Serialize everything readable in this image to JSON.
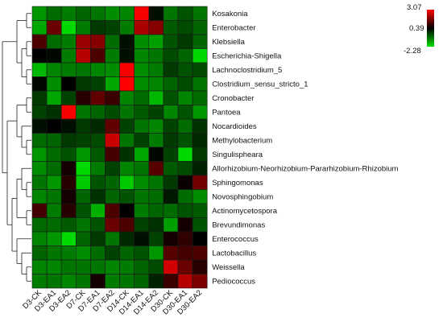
{
  "chart_data": {
    "type": "heatmap",
    "title": "",
    "xlabel": "",
    "ylabel": "",
    "columns": [
      "D3-CK",
      "D3-EA1",
      "D3-EA2",
      "D7-CK",
      "D7-EA1",
      "D7-EA2",
      "D14-CK",
      "D14-EA1",
      "D14-EA2",
      "D30-CK",
      "D30-EA1",
      "D30-EA2"
    ],
    "rows": [
      "Kosakonia",
      "Enterobacter",
      "Klebsiella",
      "Escherichia-Shigella",
      "Lachnoclostridium_5",
      "Clostridium_sensu_stricto_1",
      "Cronobacter",
      "Pantoea",
      "Nocardioides",
      "Methylobacterium",
      "Singulispheara",
      "Allorhizobium-Neorhizobium-Pararhizobium-Rhizobium",
      "Sphingomonas",
      "Novosphingobium",
      "Actinomycetospora",
      "Brevundimonas",
      "Enterococcus",
      "Lactobacillus",
      "Weissella",
      "Pediococcus"
    ],
    "values": [
      [
        -1.4,
        -0.9,
        -1.1,
        -0.8,
        -1.0,
        -1.3,
        -1.2,
        3.0,
        0.2,
        -1.0,
        -0.6,
        -1.0
      ],
      [
        -1.6,
        1.5,
        -2.2,
        -1.1,
        -0.3,
        -0.4,
        -1.1,
        2.2,
        1.8,
        -0.7,
        -0.5,
        -0.8
      ],
      [
        1.2,
        -0.9,
        -1.1,
        2.0,
        1.8,
        -0.9,
        0.2,
        -1.3,
        -1.5,
        -0.6,
        -0.3,
        -0.8
      ],
      [
        0.4,
        0.3,
        -1.1,
        2.3,
        1.2,
        -1.1,
        0.2,
        -1.2,
        -1.0,
        -0.5,
        -0.8,
        -2.2
      ],
      [
        -1.8,
        -1.2,
        -1.1,
        -1.0,
        -1.2,
        -1.3,
        3.0,
        -1.3,
        -1.1,
        -0.3,
        -0.6,
        -0.5
      ],
      [
        0.3,
        -1.3,
        0.4,
        -0.3,
        -0.4,
        -1.6,
        3.1,
        -1.3,
        -1.2,
        -0.8,
        -0.5,
        -1.0
      ],
      [
        -0.3,
        -1.6,
        -0.4,
        0.8,
        1.4,
        1.0,
        -1.2,
        -0.9,
        -1.8,
        -0.6,
        -1.2,
        -0.9
      ],
      [
        -0.4,
        -0.2,
        3.0,
        -1.0,
        -0.8,
        -0.5,
        -1.0,
        -0.7,
        -0.4,
        -1.2,
        -0.6,
        -1.4
      ],
      [
        0.2,
        0.4,
        0.2,
        -0.3,
        -0.1,
        1.4,
        -0.4,
        -1.0,
        -1.2,
        -0.4,
        -0.9,
        -0.2
      ],
      [
        -0.9,
        -0.8,
        -0.3,
        -0.4,
        -0.5,
        2.5,
        -1.0,
        -0.4,
        -1.1,
        -0.3,
        -0.6,
        -0.1
      ],
      [
        -1.4,
        -0.9,
        -0.6,
        -1.4,
        -0.7,
        1.1,
        -0.2,
        -1.6,
        0.3,
        -0.4,
        -2.2,
        -0.3
      ],
      [
        -1.3,
        -0.9,
        0.6,
        -2.2,
        -1.1,
        -0.4,
        -1.2,
        -1.0,
        1.3,
        -0.7,
        -0.5,
        0.0
      ],
      [
        -1.0,
        -1.4,
        0.8,
        -2.0,
        -0.6,
        -0.8,
        -2.0,
        -1.3,
        -1.0,
        -0.3,
        0.5,
        1.6
      ],
      [
        -1.2,
        -1.0,
        0.6,
        -0.8,
        -0.2,
        -0.8,
        -0.6,
        -1.0,
        -0.9,
        0.1,
        -0.9,
        -1.3
      ],
      [
        1.1,
        -1.1,
        0.8,
        -0.6,
        -1.7,
        1.2,
        0.4,
        -1.1,
        -0.8,
        -0.9,
        -0.6,
        -0.7
      ],
      [
        -0.9,
        -0.9,
        -0.7,
        -1.0,
        -0.6,
        1.5,
        1.2,
        -0.4,
        -0.2,
        -1.5,
        0.6,
        -0.6
      ],
      [
        -1.2,
        -1.4,
        -2.2,
        -0.8,
        -0.3,
        -1.0,
        -0.1,
        0.2,
        -0.4,
        0.6,
        0.9,
        0.4
      ],
      [
        -0.8,
        -1.0,
        -1.1,
        -1.3,
        -0.9,
        -0.4,
        -0.8,
        -0.6,
        -1.4,
        1.3,
        1.1,
        1.2
      ],
      [
        -1.2,
        -1.2,
        -1.0,
        -1.0,
        -1.0,
        -1.2,
        -1.1,
        -0.8,
        -0.5,
        2.6,
        1.5,
        0.8
      ],
      [
        -1.1,
        -1.0,
        -1.2,
        -1.0,
        0.6,
        -1.1,
        -1.0,
        -0.8,
        0.0,
        1.0,
        2.3,
        1.7
      ]
    ],
    "color_scale": {
      "min": -2.28,
      "mid": 0.39,
      "max": 3.07,
      "tick_labels": [
        "3.07",
        "0.39",
        "-2.28"
      ],
      "colors": {
        "low": "#00e000",
        "mid": "#000000",
        "high": "#ff0000"
      }
    },
    "dendrogram": "rows",
    "legend_placement": "top-right"
  }
}
